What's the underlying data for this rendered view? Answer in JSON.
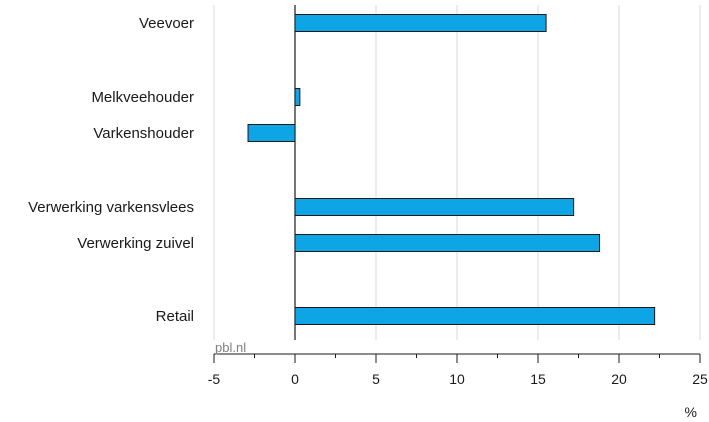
{
  "chart_data": {
    "type": "bar",
    "orientation": "horizontal",
    "categories": [
      "Veevoer",
      "Melkveehouder",
      "Varkenshouder",
      "Verwerking varkensvlees",
      "Verwerking zuivel",
      "Retail"
    ],
    "values": [
      15.5,
      0.3,
      -2.9,
      17.2,
      18.8,
      22.2
    ],
    "xlim": [
      -5,
      25
    ],
    "xticks": [
      -5,
      0,
      5,
      10,
      15,
      20,
      25
    ],
    "xlabel": "%",
    "grid": "vertical",
    "bar_color": "#0ea5e6"
  },
  "source": "pbl.nl"
}
